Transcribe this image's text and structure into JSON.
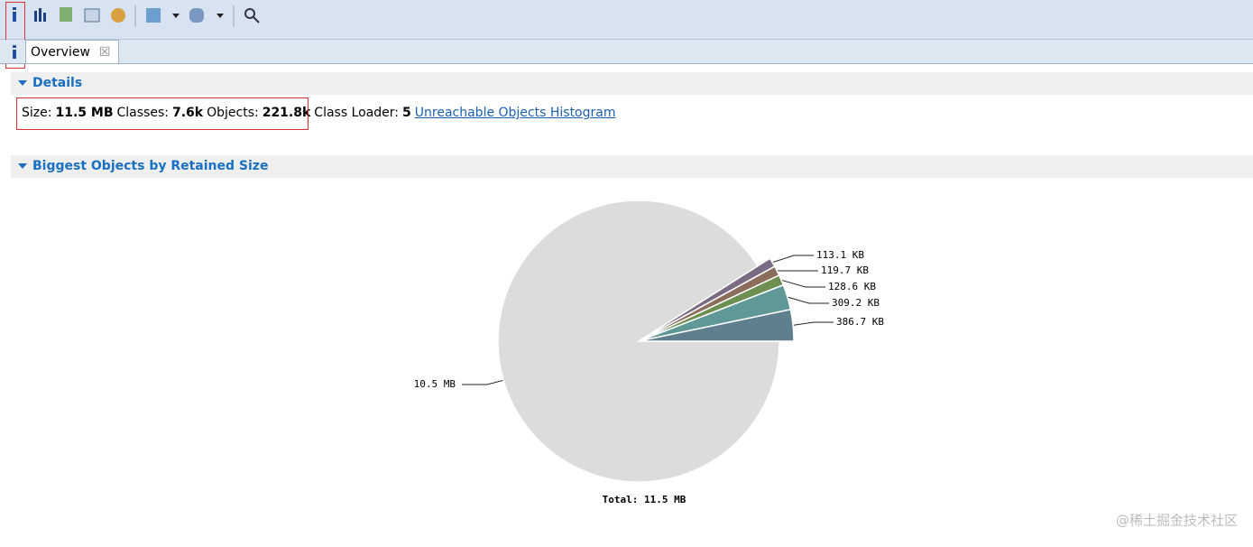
{
  "tab": {
    "label": "Overview"
  },
  "details": {
    "heading": "Details",
    "fields": [
      {
        "label": "Size:",
        "value": "11.5 MB"
      },
      {
        "label": "Classes:",
        "value": "7.6k"
      },
      {
        "label": "Objects:",
        "value": "221.8k"
      },
      {
        "label": "Class Loader:",
        "value": "5"
      }
    ],
    "link": "Unreachable Objects Histogram"
  },
  "chart_data": {
    "type": "pie",
    "title": "Biggest Objects by Retained Size",
    "values": [
      386.7,
      309.2,
      128.6,
      119.7,
      113.1,
      10752
    ],
    "value_labels": [
      "386.7 KB",
      "309.2 KB",
      "128.6 KB",
      "119.7 KB",
      "113.1 KB",
      "10.5 MB"
    ],
    "colors": [
      "#607f8e",
      "#5f9896",
      "#6e8f52",
      "#8b6d5c",
      "#7a6a82",
      "#dcdcdc"
    ],
    "total_label": "Total: 11.5 MB"
  },
  "watermark": "@稀土掘金技术社区"
}
